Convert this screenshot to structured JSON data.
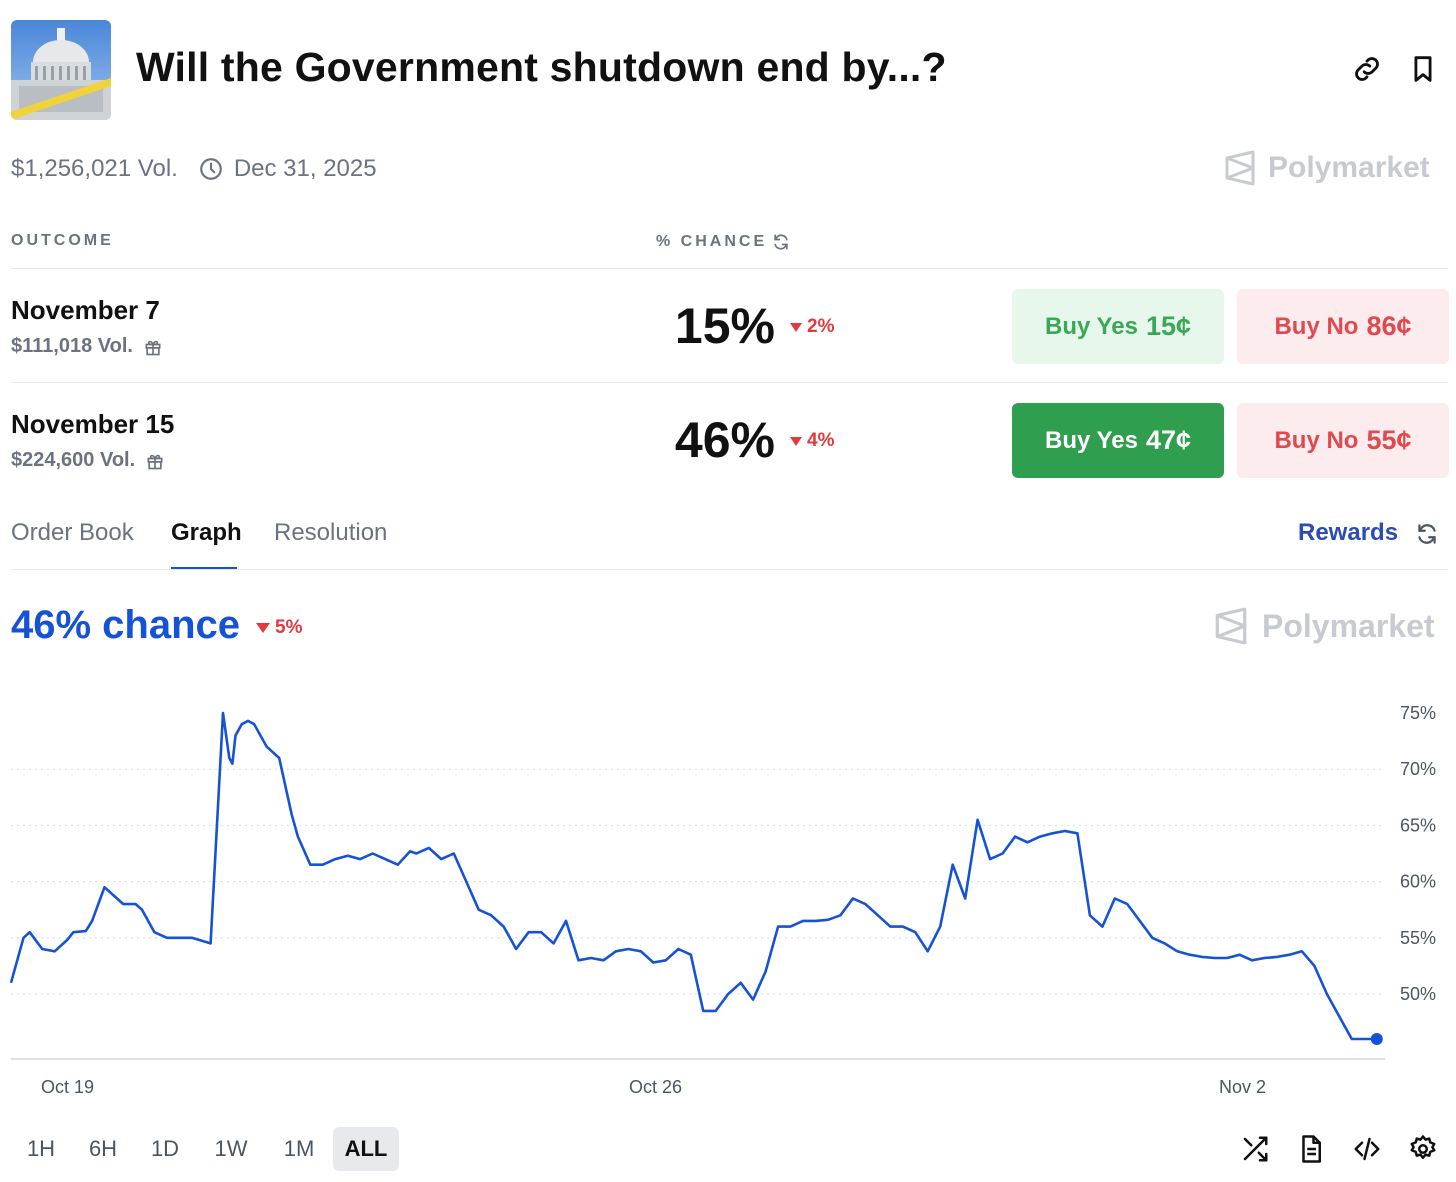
{
  "header": {
    "title": "Will the Government shutdown end by...?",
    "volume": "$1,256,021 Vol.",
    "end_date": "Dec 31, 2025",
    "brand": "Polymarket"
  },
  "columns": {
    "outcome": "OUTCOME",
    "chance": "% CHANCE"
  },
  "outcomes": [
    {
      "name": "November 7",
      "volume": "$111,018 Vol.",
      "chance": "15%",
      "delta": "2%",
      "yes_label": "Buy Yes",
      "yes_price": "15¢",
      "no_label": "Buy No",
      "no_price": "86¢",
      "selected": false
    },
    {
      "name": "November 15",
      "volume": "$224,600 Vol.",
      "chance": "46%",
      "delta": "4%",
      "yes_label": "Buy Yes",
      "yes_price": "47¢",
      "no_label": "Buy No",
      "no_price": "55¢",
      "selected": true
    }
  ],
  "tabs": [
    {
      "label": "Order Book",
      "active": false
    },
    {
      "label": "Graph",
      "active": true
    },
    {
      "label": "Resolution",
      "active": false
    }
  ],
  "rewards_label": "Rewards",
  "graph": {
    "chance_text": "46% chance",
    "delta": "5%",
    "brand": "Polymarket"
  },
  "ranges": [
    {
      "label": "1H",
      "active": false
    },
    {
      "label": "6H",
      "active": false
    },
    {
      "label": "1D",
      "active": false
    },
    {
      "label": "1W",
      "active": false
    },
    {
      "label": "1M",
      "active": false
    },
    {
      "label": "ALL",
      "active": true
    }
  ],
  "icons": {
    "link": "link-icon",
    "bookmark": "bookmark-icon",
    "clock": "clock-icon",
    "gift": "gift-icon",
    "refresh": "refresh-icon",
    "shuffle": "shuffle-icon",
    "document": "document-icon",
    "embed": "code-icon",
    "settings": "gear-icon",
    "brand": "polymarket-logo-icon"
  },
  "colors": {
    "line": "#1652d6",
    "yes": "#2f9e4f",
    "no": "#e0494e",
    "down": "#e0393e"
  },
  "chart_data": {
    "type": "line",
    "y_ticks": [
      "75%",
      "70%",
      "65%",
      "60%",
      "55%",
      "50%"
    ],
    "x_ticks": [
      "Oct 19",
      "Oct 26",
      "Nov 2"
    ],
    "ylim": [
      45,
      76
    ],
    "xlim": [
      0,
      22
    ],
    "grid": true,
    "series": [
      {
        "x": [
          0.0,
          0.2,
          0.3,
          0.5,
          0.7,
          0.9,
          1.0,
          1.2,
          1.3,
          1.5,
          1.8,
          2.0,
          2.1,
          2.3,
          2.5,
          2.7,
          2.9,
          3.2,
          3.4,
          3.5,
          3.55,
          3.6,
          3.7,
          3.8,
          3.9,
          4.1,
          4.3,
          4.5,
          4.6,
          4.8,
          5.0,
          5.2,
          5.4,
          5.6,
          5.8,
          6.0,
          6.2,
          6.4,
          6.5,
          6.7,
          6.9,
          7.1,
          7.3,
          7.5,
          7.7,
          7.9,
          8.1,
          8.3,
          8.5,
          8.7,
          8.9,
          9.1,
          9.3,
          9.5,
          9.7,
          9.9,
          10.1,
          10.3,
          10.5,
          10.7,
          10.9,
          11.1,
          11.3,
          11.5,
          11.7,
          11.9,
          12.1,
          12.3,
          12.5,
          12.7,
          12.9,
          13.1,
          13.3,
          13.5,
          13.7,
          13.9,
          14.1,
          14.3,
          14.5,
          14.7,
          14.9,
          15.1,
          15.3,
          15.5,
          15.7,
          15.9,
          16.1,
          16.3,
          16.5,
          16.7,
          16.9,
          17.1,
          17.3,
          17.5,
          17.7,
          17.9,
          18.1,
          18.3,
          18.5,
          18.7,
          18.9,
          19.1,
          19.3,
          19.5,
          19.7,
          19.9,
          20.1,
          20.3,
          20.5,
          20.7,
          20.9,
          21.1,
          21.3,
          21.5,
          21.7,
          21.9
        ],
        "values": [
          51.0,
          55.0,
          55.5,
          54.0,
          53.8,
          54.8,
          55.5,
          55.6,
          56.5,
          59.5,
          58.0,
          58.0,
          57.5,
          55.5,
          55.0,
          55.0,
          55.0,
          54.5,
          75.0,
          71.0,
          70.5,
          73.0,
          74.0,
          74.3,
          74.0,
          72.0,
          71.0,
          66.0,
          64.0,
          61.5,
          61.5,
          62.0,
          62.3,
          62.0,
          62.5,
          62.0,
          61.5,
          62.7,
          62.5,
          63.0,
          62.0,
          62.5,
          60.0,
          57.5,
          57.0,
          56.0,
          54.0,
          55.5,
          55.5,
          54.5,
          56.5,
          53.0,
          53.2,
          53.0,
          53.8,
          54.0,
          53.8,
          52.8,
          53.0,
          54.0,
          53.5,
          48.5,
          48.5,
          50.0,
          51.0,
          49.5,
          52.0,
          56.0,
          56.0,
          56.5,
          56.5,
          56.6,
          57.0,
          58.5,
          58.0,
          57.0,
          56.0,
          56.0,
          55.5,
          53.8,
          56.0,
          61.5,
          58.5,
          65.5,
          62.0,
          62.5,
          64.0,
          63.5,
          64.0,
          64.3,
          64.5,
          64.3,
          57.0,
          56.0,
          58.5,
          58.0,
          56.5,
          55.0,
          54.5,
          53.8,
          53.5,
          53.3,
          53.2,
          53.2,
          53.5,
          53.0,
          53.2,
          53.3,
          53.5,
          53.8,
          52.5,
          50.0,
          48.0,
          46.0,
          46.0,
          46.0
        ]
      }
    ]
  }
}
